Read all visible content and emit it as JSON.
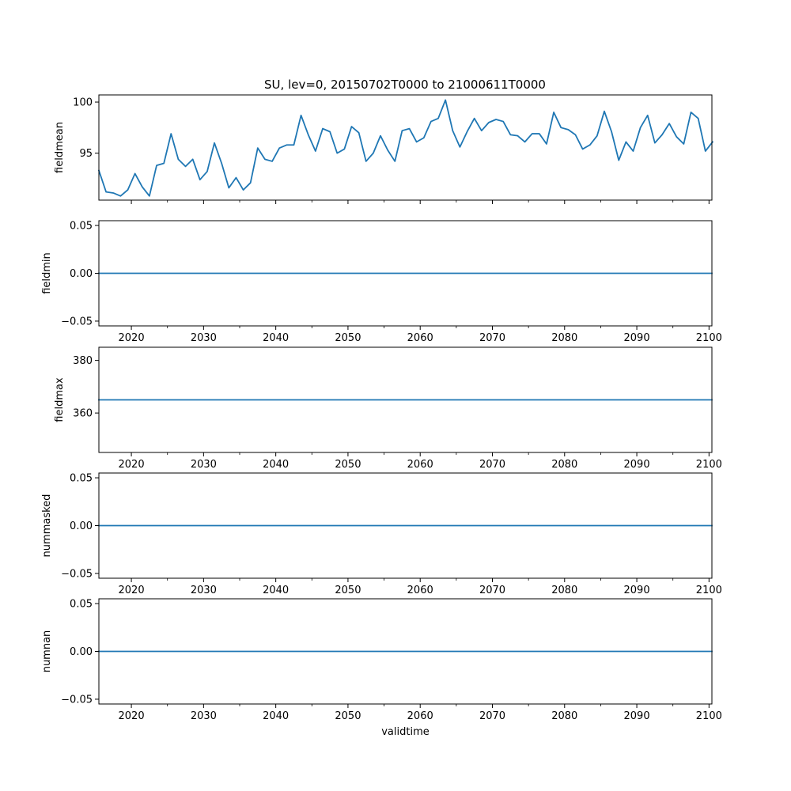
{
  "figure_title": "SU, lev=0, 20150702T0000 to 21000611T0000",
  "line_color": "#1f77b4",
  "chart_data": [
    {
      "type": "line",
      "ylabel": "fieldmean",
      "xlabel": "",
      "xlim": [
        2015.5,
        2100.4
      ],
      "ylim": [
        90.4,
        100.7
      ],
      "xticks": [
        2020,
        2030,
        2040,
        2050,
        2060,
        2070,
        2080,
        2090,
        2100
      ],
      "xtick_labels": [],
      "yticks": [
        95,
        100
      ],
      "ytick_labels": [
        "95",
        "100"
      ],
      "x_start": 2015.5,
      "x_step": 1,
      "values": [
        93.3,
        91.2,
        91.1,
        90.8,
        91.4,
        93.0,
        91.7,
        90.8,
        93.8,
        94.0,
        96.9,
        94.4,
        93.7,
        94.4,
        92.4,
        93.2,
        96.0,
        94.0,
        91.6,
        92.6,
        91.4,
        92.1,
        95.5,
        94.4,
        94.2,
        95.5,
        95.8,
        95.8,
        98.7,
        96.8,
        95.2,
        97.4,
        97.1,
        95.0,
        95.4,
        97.6,
        97.0,
        94.2,
        95.0,
        96.7,
        95.3,
        94.2,
        97.2,
        97.4,
        96.1,
        96.5,
        98.1,
        98.4,
        100.2,
        97.2,
        95.6,
        97.1,
        98.4,
        97.2,
        98.0,
        98.3,
        98.1,
        96.8,
        96.7,
        96.1,
        96.9,
        96.9,
        95.9,
        99.0,
        97.5,
        97.3,
        96.8,
        95.4,
        95.8,
        96.7,
        99.1,
        97.1,
        94.3,
        96.1,
        95.2,
        97.5,
        98.7,
        96.0,
        96.8,
        97.9,
        96.6,
        95.9,
        99.0,
        98.4,
        95.2,
        96.1
      ]
    },
    {
      "type": "line",
      "ylabel": "fieldmin",
      "xlabel": "",
      "xlim": [
        2015.5,
        2100.4
      ],
      "ylim": [
        -0.055,
        0.055
      ],
      "xticks": [
        2020,
        2030,
        2040,
        2050,
        2060,
        2070,
        2080,
        2090,
        2100
      ],
      "xtick_labels": [
        "2020",
        "2030",
        "2040",
        "2050",
        "2060",
        "2070",
        "2080",
        "2090",
        "2100"
      ],
      "yticks": [
        -0.05,
        0.0,
        0.05
      ],
      "ytick_labels": [
        "−0.05",
        "0.00",
        "0.05"
      ],
      "constant_value": 0.0
    },
    {
      "type": "line",
      "ylabel": "fieldmax",
      "xlabel": "",
      "xlim": [
        2015.5,
        2100.4
      ],
      "ylim": [
        345,
        385
      ],
      "xticks": [
        2020,
        2030,
        2040,
        2050,
        2060,
        2070,
        2080,
        2090,
        2100
      ],
      "xtick_labels": [
        "2020",
        "2030",
        "2040",
        "2050",
        "2060",
        "2070",
        "2080",
        "2090",
        "2100"
      ],
      "yticks": [
        360,
        380
      ],
      "ytick_labels": [
        "360",
        "380"
      ],
      "constant_value": 365
    },
    {
      "type": "line",
      "ylabel": "nummasked",
      "xlabel": "",
      "xlim": [
        2015.5,
        2100.4
      ],
      "ylim": [
        -0.055,
        0.055
      ],
      "xticks": [
        2020,
        2030,
        2040,
        2050,
        2060,
        2070,
        2080,
        2090,
        2100
      ],
      "xtick_labels": [
        "2020",
        "2030",
        "2040",
        "2050",
        "2060",
        "2070",
        "2080",
        "2090",
        "2100"
      ],
      "yticks": [
        -0.05,
        0.0,
        0.05
      ],
      "ytick_labels": [
        "−0.05",
        "0.00",
        "0.05"
      ],
      "constant_value": 0.0
    },
    {
      "type": "line",
      "ylabel": "numnan",
      "xlabel": "validtime",
      "xlim": [
        2015.5,
        2100.4
      ],
      "ylim": [
        -0.055,
        0.055
      ],
      "xticks": [
        2020,
        2030,
        2040,
        2050,
        2060,
        2070,
        2080,
        2090,
        2100
      ],
      "xtick_labels": [
        "2020",
        "2030",
        "2040",
        "2050",
        "2060",
        "2070",
        "2080",
        "2090",
        "2100"
      ],
      "yticks": [
        -0.05,
        0.0,
        0.05
      ],
      "ytick_labels": [
        "−0.05",
        "0.00",
        "0.05"
      ],
      "constant_value": 0.0
    }
  ]
}
